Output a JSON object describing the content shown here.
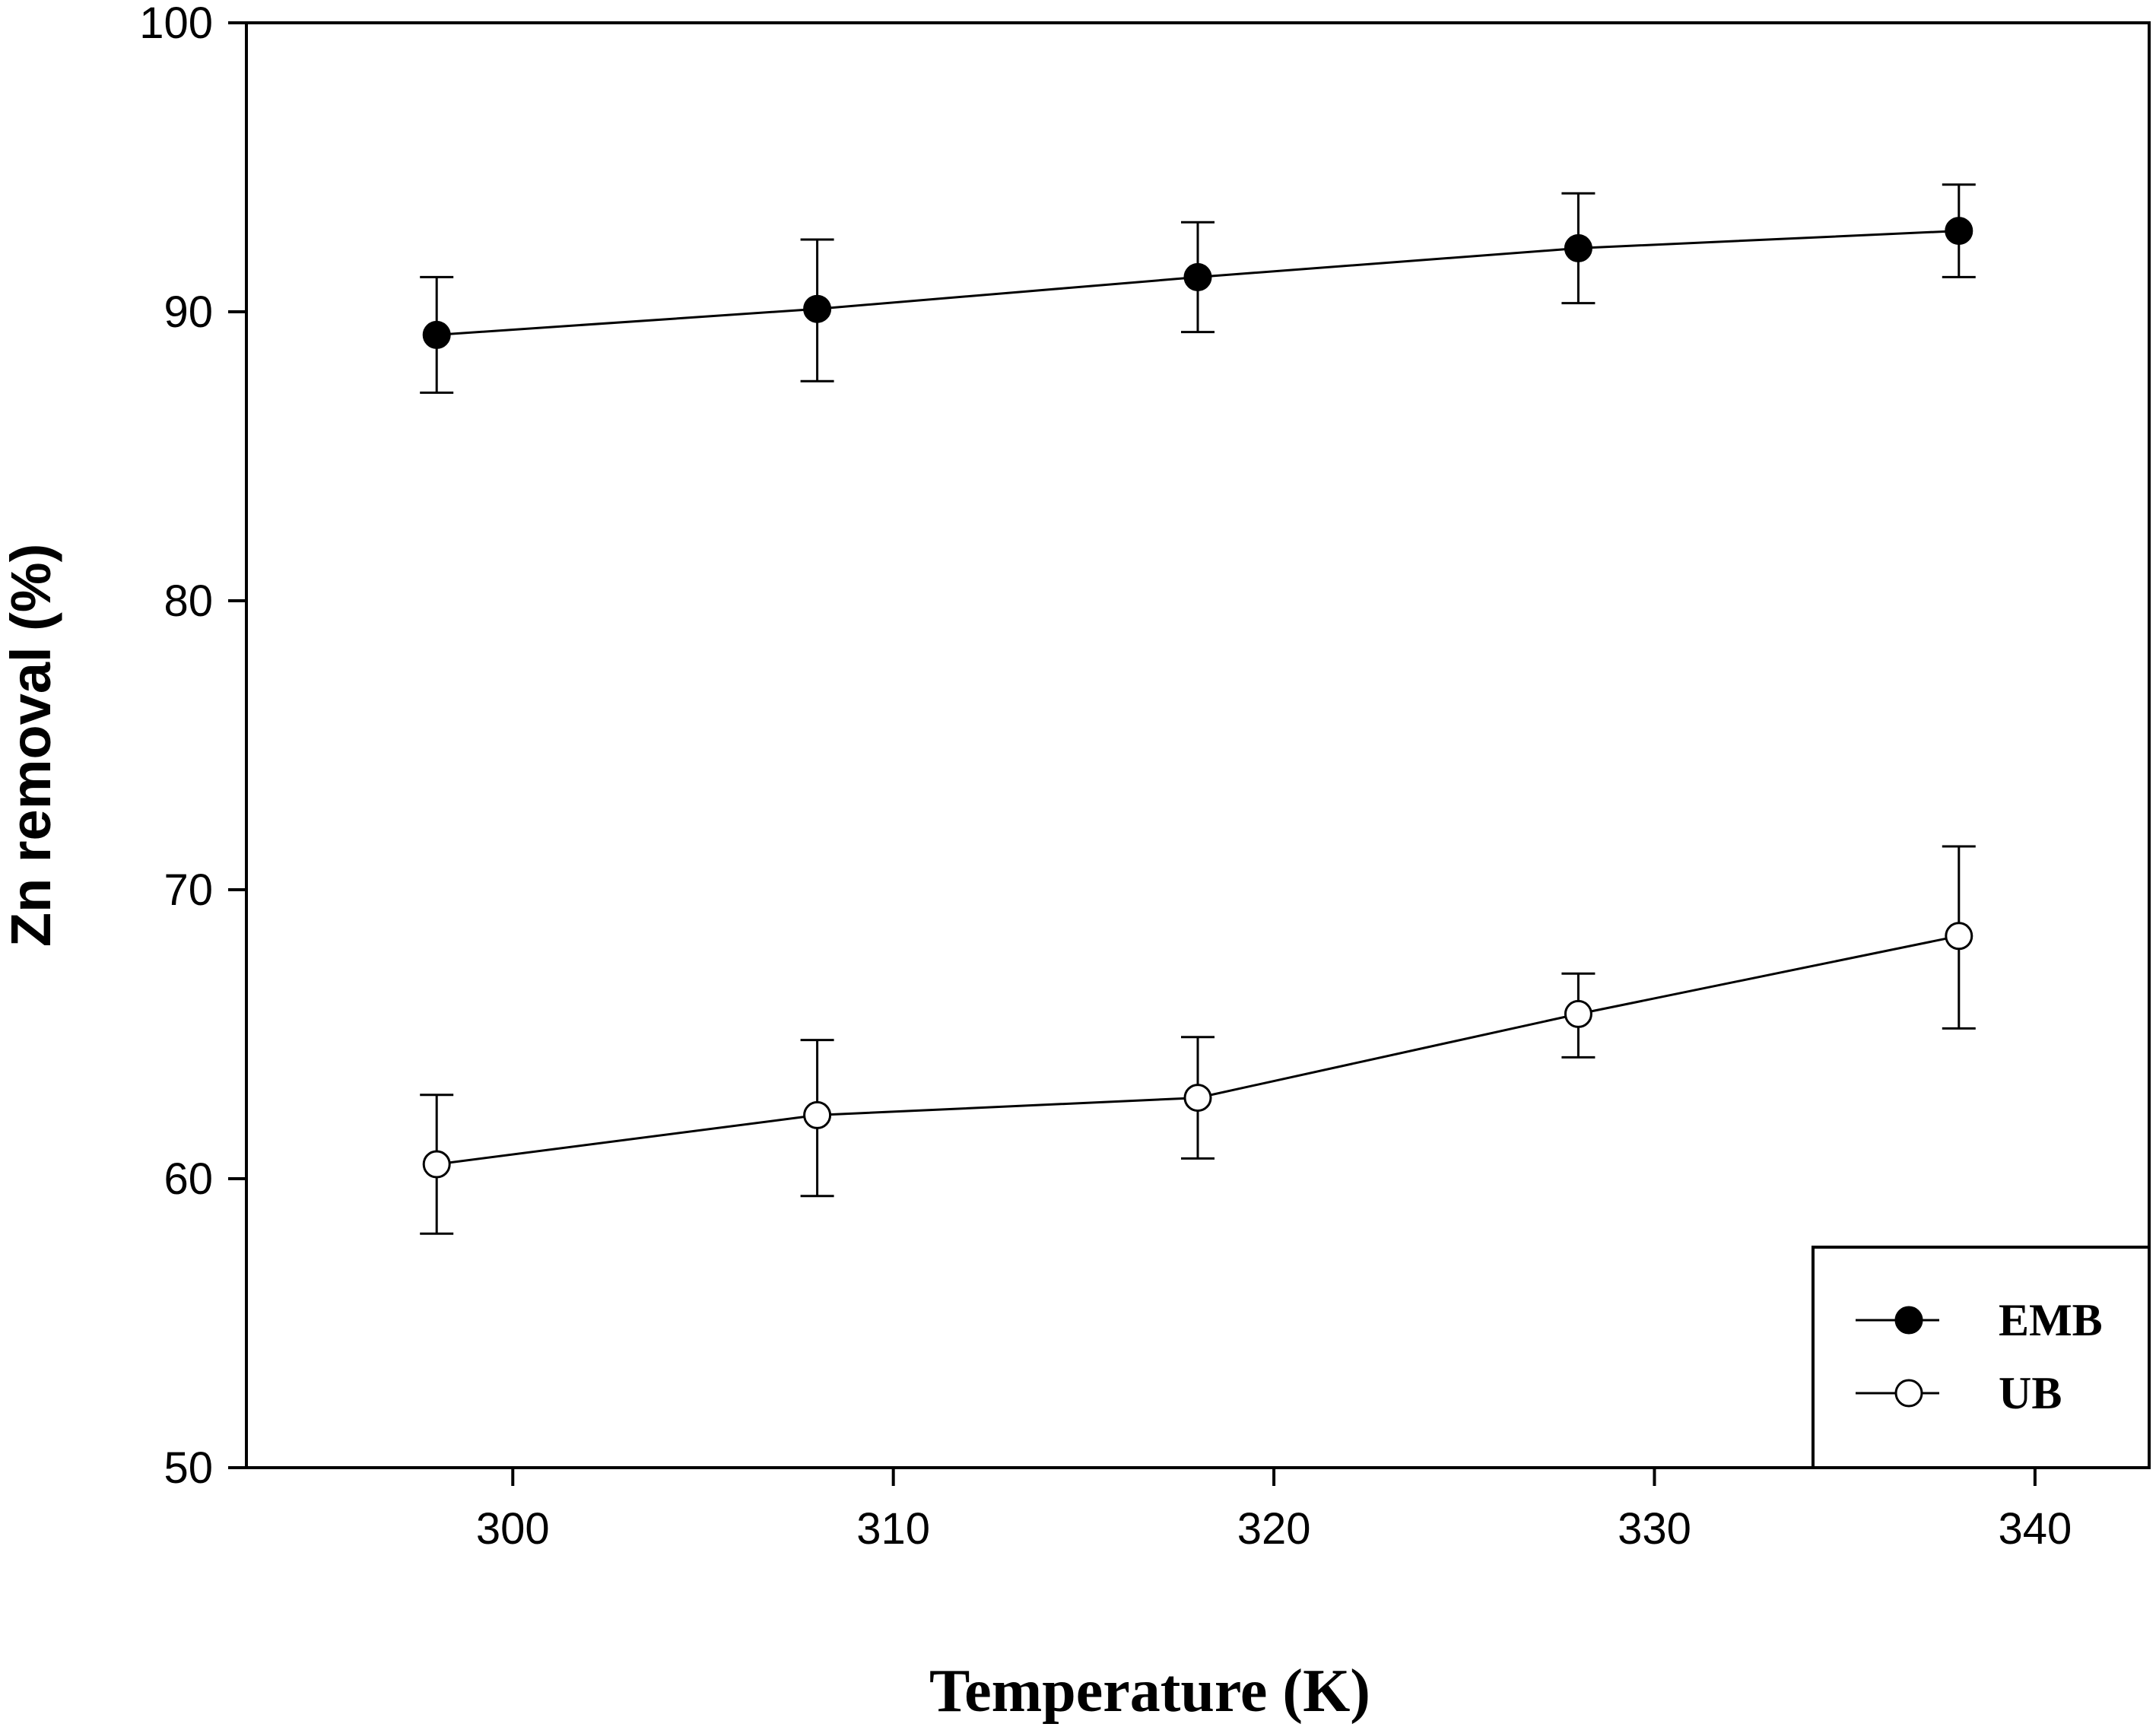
{
  "chart_data": {
    "type": "line",
    "title": "",
    "xlabel": "Temperature (K)",
    "ylabel": "Zn removal (%)",
    "xlim": [
      293,
      343
    ],
    "ylim": [
      50,
      100
    ],
    "xticks": [
      300,
      310,
      320,
      330,
      340
    ],
    "yticks": [
      50,
      60,
      70,
      80,
      90,
      100
    ],
    "grid": false,
    "legend_position": "bottom-right",
    "series": [
      {
        "name": "EMB",
        "marker": "filled-circle",
        "color": "#000000",
        "x": [
          298,
          308,
          318,
          328,
          338
        ],
        "y": [
          89.2,
          90.1,
          91.2,
          92.2,
          92.8
        ],
        "err_low": [
          2.0,
          2.5,
          1.9,
          1.9,
          1.6
        ],
        "err_high": [
          2.0,
          2.4,
          1.9,
          1.9,
          1.6
        ]
      },
      {
        "name": "UB",
        "marker": "open-circle",
        "color": "#000000",
        "x": [
          298,
          308,
          318,
          328,
          338
        ],
        "y": [
          60.5,
          62.2,
          62.8,
          65.7,
          68.4
        ],
        "err_low": [
          2.4,
          2.8,
          2.1,
          1.5,
          3.2
        ],
        "err_high": [
          2.4,
          2.6,
          2.1,
          1.4,
          3.1
        ]
      }
    ]
  }
}
